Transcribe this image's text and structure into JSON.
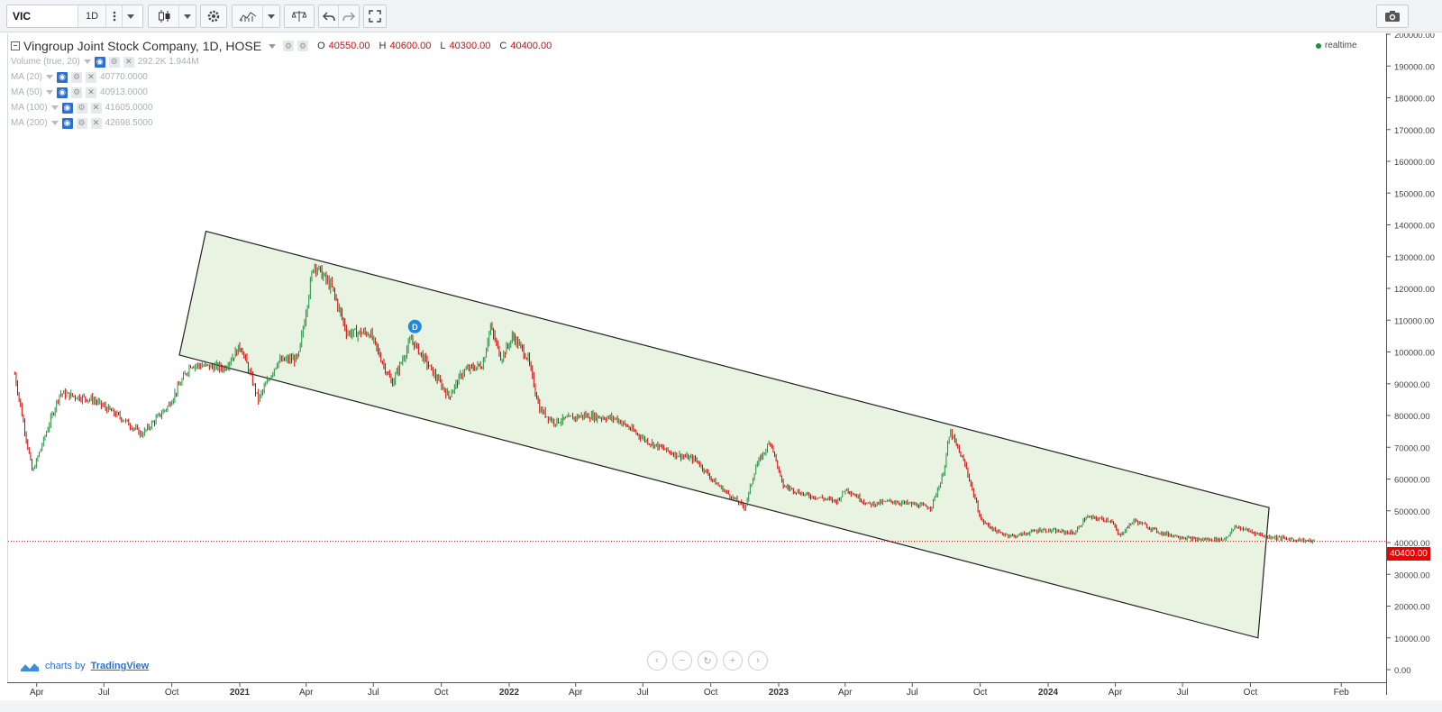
{
  "toolbar": {
    "symbol": "VIC",
    "interval": "1D",
    "icons": [
      "more-icon",
      "candles-icon",
      "settings-icon",
      "indicators-icon",
      "compare-icon",
      "undo-icon",
      "redo-icon",
      "fullscreen-icon",
      "camera-icon"
    ]
  },
  "legend": {
    "title": "Vingroup Joint Stock Company, 1D, HOSE",
    "o_label": "O",
    "o": "40550.00",
    "h_label": "H",
    "h": "40600.00",
    "l_label": "L",
    "l": "40300.00",
    "c_label": "C",
    "c": "40400.00",
    "studies": [
      {
        "name": "Volume (true, 20)",
        "value": "292.2K 1.944M"
      },
      {
        "name": "MA (20)",
        "value": "40770.0000"
      },
      {
        "name": "MA (50)",
        "value": "40913.0000"
      },
      {
        "name": "MA (100)",
        "value": "41605.0000"
      },
      {
        "name": "MA (200)",
        "value": "42698.5000"
      }
    ]
  },
  "status": {
    "realtime": "realtime"
  },
  "credit": {
    "prefix": "charts by",
    "brand": "TradingView"
  },
  "price_tag": "40400.00",
  "event_marker": "D",
  "nav": [
    "‹",
    "−",
    "↻",
    "+",
    "›"
  ],
  "colors": {
    "up": "#26a69a",
    "down": "#e00000",
    "channel_fill": "#e8f3e2",
    "accent": "#2a6fd1"
  },
  "chart_data": {
    "type": "candlestick",
    "ylabels": [
      "200000.00",
      "190000.00",
      "180000.00",
      "170000.00",
      "160000.00",
      "150000.00",
      "140000.00",
      "130000.00",
      "120000.00",
      "110000.00",
      "100000.00",
      "90000.00",
      "80000.00",
      "70000.00",
      "60000.00",
      "50000.00",
      "40000.00",
      "30000.00",
      "20000.00",
      "10000.00",
      "0.00"
    ],
    "ylim": [
      0,
      200000
    ],
    "xlabels": [
      "Apr",
      "Jul",
      "Oct",
      "2021",
      "Apr",
      "Jul",
      "Oct",
      "2022",
      "Apr",
      "Jul",
      "Oct",
      "2023",
      "Apr",
      "Jul",
      "Oct",
      "2024",
      "Apr",
      "Jul",
      "Oct",
      "Feb"
    ],
    "xlabel_bold": [
      false,
      false,
      false,
      true,
      false,
      false,
      false,
      true,
      false,
      false,
      false,
      true,
      false,
      false,
      false,
      true,
      false,
      false,
      false,
      false
    ],
    "x_range": [
      "2020-03-01",
      "2025-03-01"
    ],
    "close_series": [
      {
        "date": "2020-03-01",
        "close": 93000
      },
      {
        "date": "2020-03-25",
        "close": 62000
      },
      {
        "date": "2020-05-01",
        "close": 87000
      },
      {
        "date": "2020-06-15",
        "close": 85000
      },
      {
        "date": "2020-07-25",
        "close": 79000
      },
      {
        "date": "2020-08-20",
        "close": 74000
      },
      {
        "date": "2020-09-25",
        "close": 83000
      },
      {
        "date": "2020-10-25",
        "close": 96000
      },
      {
        "date": "2020-12-10",
        "close": 95000
      },
      {
        "date": "2021-01-01",
        "close": 102000
      },
      {
        "date": "2021-01-25",
        "close": 85000
      },
      {
        "date": "2021-02-20",
        "close": 97000
      },
      {
        "date": "2021-03-20",
        "close": 98000
      },
      {
        "date": "2021-04-10",
        "close": 128000
      },
      {
        "date": "2021-05-05",
        "close": 120000
      },
      {
        "date": "2021-05-25",
        "close": 106000
      },
      {
        "date": "2021-06-25",
        "close": 106000
      },
      {
        "date": "2021-07-25",
        "close": 90000
      },
      {
        "date": "2021-08-20",
        "close": 104000
      },
      {
        "date": "2021-09-20",
        "close": 93000
      },
      {
        "date": "2021-10-10",
        "close": 86000
      },
      {
        "date": "2021-10-30",
        "close": 94000
      },
      {
        "date": "2021-11-25",
        "close": 96000
      },
      {
        "date": "2021-12-05",
        "close": 108000
      },
      {
        "date": "2021-12-20",
        "close": 98000
      },
      {
        "date": "2022-01-05",
        "close": 105000
      },
      {
        "date": "2022-01-25",
        "close": 98000
      },
      {
        "date": "2022-02-10",
        "close": 82000
      },
      {
        "date": "2022-03-01",
        "close": 78000
      },
      {
        "date": "2022-04-10",
        "close": 80000
      },
      {
        "date": "2022-05-25",
        "close": 79000
      },
      {
        "date": "2022-07-05",
        "close": 72000
      },
      {
        "date": "2022-08-10",
        "close": 68000
      },
      {
        "date": "2022-09-10",
        "close": 66000
      },
      {
        "date": "2022-10-05",
        "close": 59000
      },
      {
        "date": "2022-10-25",
        "close": 55000
      },
      {
        "date": "2022-11-15",
        "close": 51000
      },
      {
        "date": "2022-11-30",
        "close": 64000
      },
      {
        "date": "2022-12-20",
        "close": 72000
      },
      {
        "date": "2023-01-05",
        "close": 58000
      },
      {
        "date": "2023-02-05",
        "close": 55000
      },
      {
        "date": "2023-03-20",
        "close": 53000
      },
      {
        "date": "2023-04-01",
        "close": 57000
      },
      {
        "date": "2023-05-01",
        "close": 52000
      },
      {
        "date": "2023-06-01",
        "close": 53000
      },
      {
        "date": "2023-07-01",
        "close": 52000
      },
      {
        "date": "2023-07-25",
        "close": 51000
      },
      {
        "date": "2023-08-10",
        "close": 61000
      },
      {
        "date": "2023-08-20",
        "close": 75000
      },
      {
        "date": "2023-09-10",
        "close": 64000
      },
      {
        "date": "2023-10-01",
        "close": 47000
      },
      {
        "date": "2023-10-25",
        "close": 43000
      },
      {
        "date": "2023-11-15",
        "close": 42000
      },
      {
        "date": "2023-12-20",
        "close": 44000
      },
      {
        "date": "2024-02-05",
        "close": 43000
      },
      {
        "date": "2024-02-20",
        "close": 48000
      },
      {
        "date": "2024-03-25",
        "close": 47000
      },
      {
        "date": "2024-04-05",
        "close": 42000
      },
      {
        "date": "2024-04-25",
        "close": 47000
      },
      {
        "date": "2024-06-01",
        "close": 43000
      },
      {
        "date": "2024-07-15",
        "close": 41000
      },
      {
        "date": "2024-08-25",
        "close": 41000
      },
      {
        "date": "2024-09-10",
        "close": 45000
      },
      {
        "date": "2024-10-20",
        "close": 42000
      },
      {
        "date": "2024-11-25",
        "close": 41000
      },
      {
        "date": "2024-12-25",
        "close": 40400
      }
    ],
    "channel": [
      {
        "date": "2020-11-15",
        "price": 138000
      },
      {
        "date": "2024-10-25",
        "price": 51000
      },
      {
        "date": "2024-10-10",
        "price": 10000
      },
      {
        "date": "2020-10-10",
        "price": 99000
      }
    ],
    "last_price": 40400,
    "event_marker": {
      "date": "2021-08-25",
      "price": 108000
    }
  }
}
